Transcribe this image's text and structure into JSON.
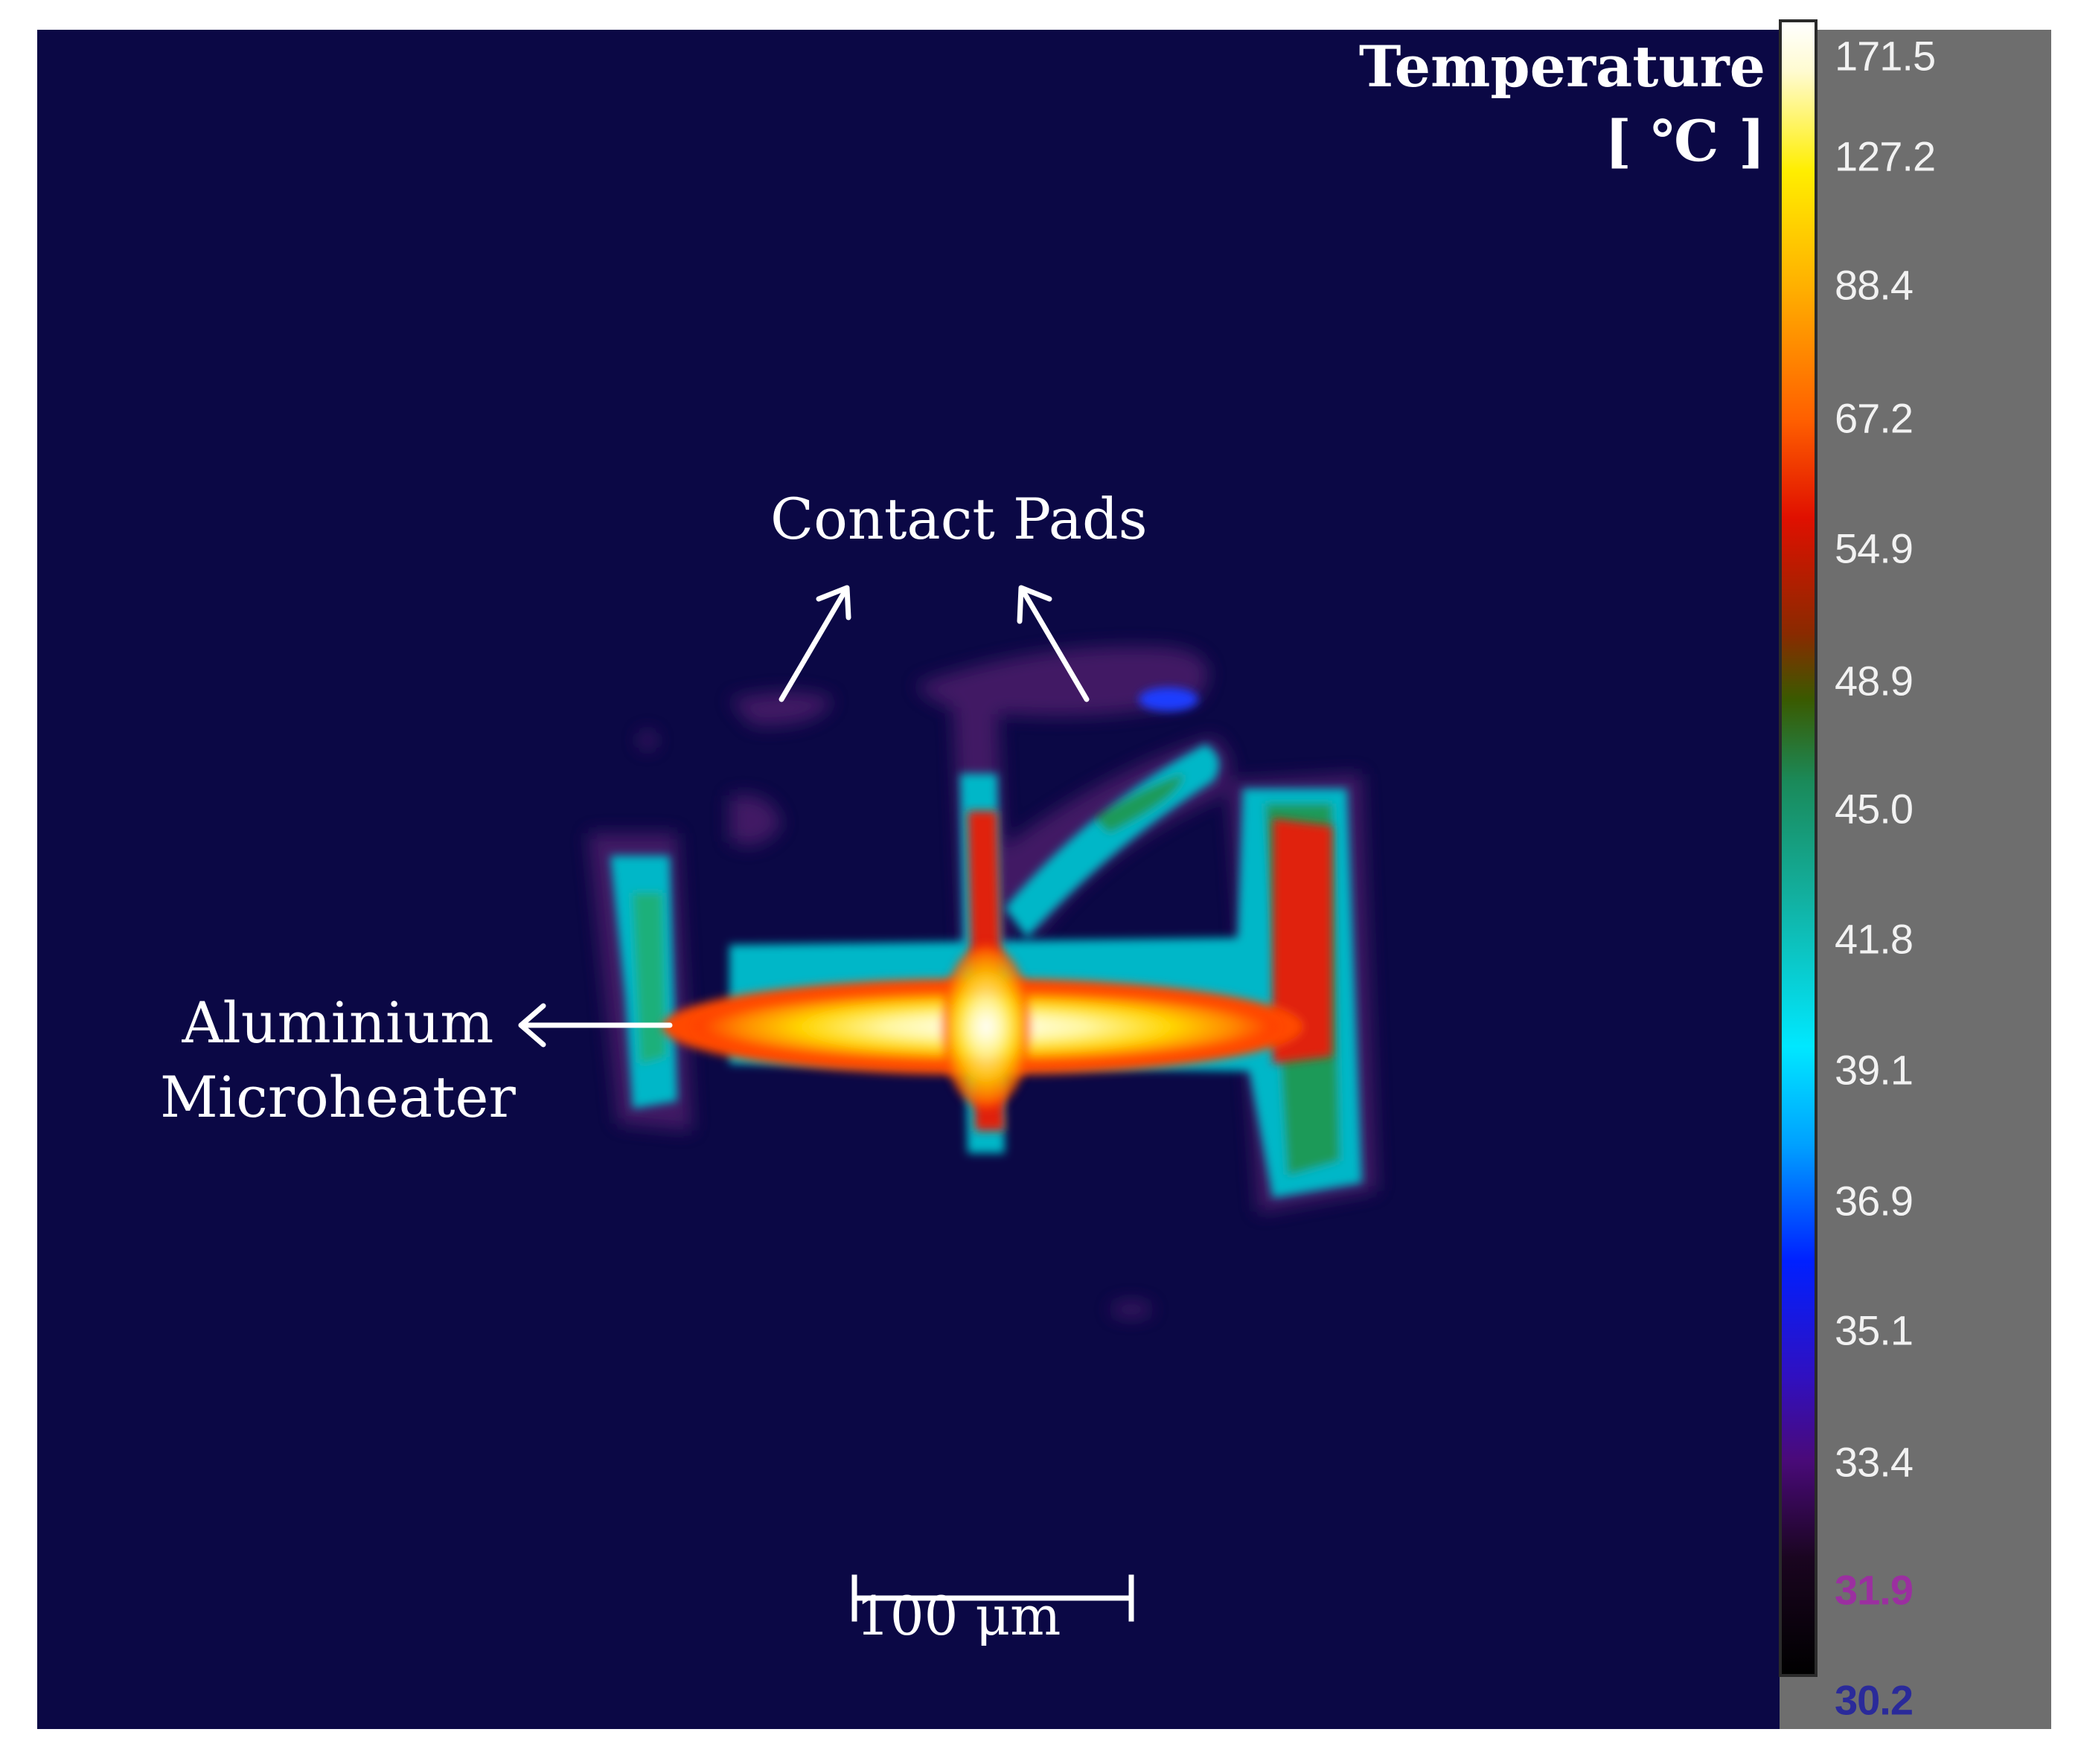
{
  "legend": {
    "title_line1": "Temperature",
    "title_line2": "[ ℃ ]",
    "ticks": [
      "171.5",
      "127.2",
      "88.4",
      "67.2",
      "54.9",
      "48.9",
      "45.0",
      "41.8",
      "39.1",
      "36.9",
      "35.1",
      "33.4",
      "31.9",
      "30.2"
    ],
    "max_label_color": "#f2f2f2",
    "min_color": "#2a2a9a",
    "second_min_color": "#9b2fa0"
  },
  "annotations": {
    "contact_pads": "Contact Pads",
    "microheater_line1": "Aluminium",
    "microheater_line2": "Microheater"
  },
  "scale_bar": {
    "label": "100 μm"
  },
  "colors": {
    "background": "#0b0845",
    "panel": "#6e6e6e"
  }
}
